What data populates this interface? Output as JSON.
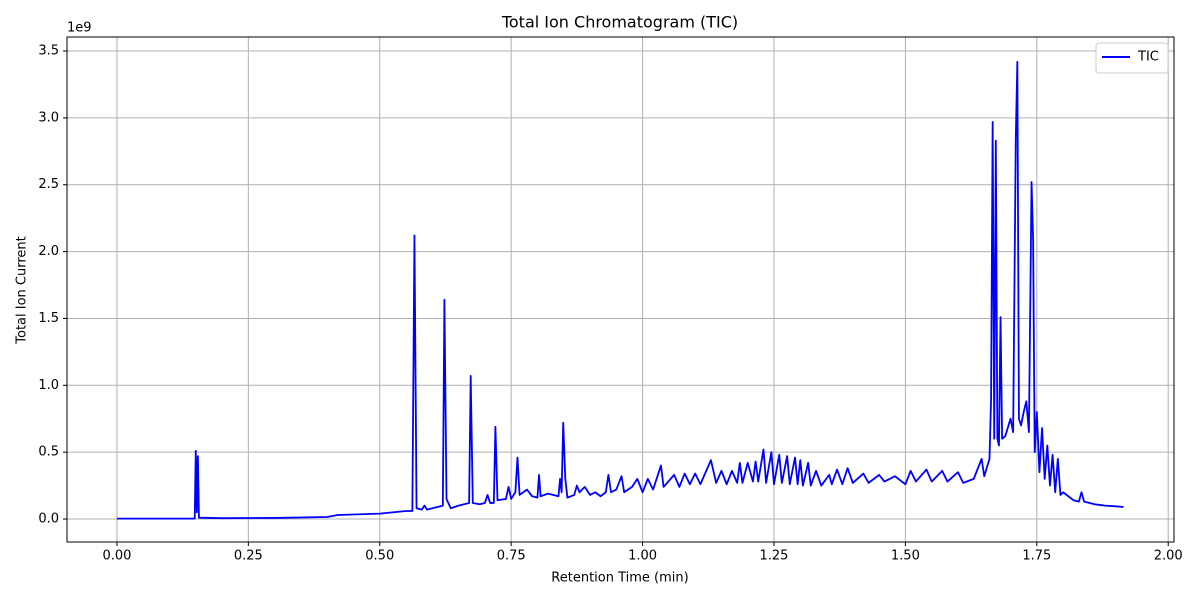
{
  "chart_data": {
    "type": "line",
    "title": "Total Ion Chromatogram (TIC)",
    "x_label": "Retention Time (min)",
    "y_label": "Total Ion Current",
    "y_offset_label": "1e9",
    "xlim": [
      -0.095,
      2.011
    ],
    "ylim": [
      -0.172,
      3.605
    ],
    "xticks": [
      {
        "value": 0,
        "label": "0.00"
      },
      0.25,
      {
        "value": 0.5,
        "label": "0.50"
      },
      0.75,
      {
        "value": 1,
        "label": "1.00"
      },
      1.25,
      {
        "value": 1.5,
        "label": "1.50"
      },
      1.75,
      {
        "value": 2,
        "label": "2.00"
      }
    ],
    "yticks": [
      {
        "value": 0,
        "label": "0.0"
      },
      0.5,
      {
        "value": 1,
        "label": "1.0"
      },
      1.5,
      {
        "value": 2,
        "label": "2.0"
      },
      2.5,
      {
        "value": 3,
        "label": "3.0"
      },
      3.5
    ],
    "grid": true,
    "legend": "upper right",
    "x": [
      0.0,
      0.1,
      0.148,
      0.15,
      0.152,
      0.154,
      0.156,
      0.2,
      0.3,
      0.4,
      0.42,
      0.5,
      0.55,
      0.562,
      0.566,
      0.57,
      0.58,
      0.585,
      0.59,
      0.61,
      0.62,
      0.623,
      0.627,
      0.635,
      0.65,
      0.67,
      0.673,
      0.677,
      0.69,
      0.7,
      0.705,
      0.71,
      0.717,
      0.72,
      0.724,
      0.74,
      0.745,
      0.75,
      0.758,
      0.762,
      0.766,
      0.78,
      0.79,
      0.8,
      0.803,
      0.806,
      0.82,
      0.84,
      0.843,
      0.846,
      0.849,
      0.853,
      0.857,
      0.87,
      0.875,
      0.88,
      0.89,
      0.9,
      0.91,
      0.92,
      0.93,
      0.935,
      0.94,
      0.95,
      0.96,
      0.965,
      0.98,
      0.99,
      1.0,
      1.01,
      1.02,
      1.035,
      1.04,
      1.06,
      1.07,
      1.08,
      1.09,
      1.1,
      1.11,
      1.13,
      1.14,
      1.15,
      1.16,
      1.17,
      1.18,
      1.185,
      1.19,
      1.2,
      1.21,
      1.215,
      1.22,
      1.23,
      1.235,
      1.245,
      1.25,
      1.26,
      1.265,
      1.275,
      1.28,
      1.29,
      1.295,
      1.3,
      1.305,
      1.315,
      1.32,
      1.33,
      1.34,
      1.355,
      1.36,
      1.37,
      1.38,
      1.39,
      1.4,
      1.42,
      1.43,
      1.45,
      1.46,
      1.48,
      1.5,
      1.51,
      1.52,
      1.54,
      1.55,
      1.57,
      1.58,
      1.6,
      1.61,
      1.63,
      1.645,
      1.65,
      1.66,
      1.663,
      1.666,
      1.669,
      1.672,
      1.675,
      1.678,
      1.681,
      1.684,
      1.69,
      1.7,
      1.705,
      1.71,
      1.713,
      1.716,
      1.72,
      1.725,
      1.73,
      1.735,
      1.74,
      1.743,
      1.746,
      1.75,
      1.755,
      1.76,
      1.765,
      1.77,
      1.775,
      1.78,
      1.785,
      1.79,
      1.795,
      1.8,
      1.82,
      1.83,
      1.835,
      1.84,
      1.86,
      1.88,
      1.9,
      1.915
    ],
    "series": [
      {
        "name": "TIC",
        "color": "#0000ff",
        "values": [
          0.003,
          0.003,
          0.003,
          0.51,
          0.05,
          0.47,
          0.01,
          0.006,
          0.008,
          0.015,
          0.03,
          0.04,
          0.06,
          0.06,
          2.12,
          0.08,
          0.07,
          0.1,
          0.07,
          0.09,
          0.1,
          1.64,
          0.15,
          0.08,
          0.1,
          0.12,
          1.07,
          0.12,
          0.11,
          0.12,
          0.18,
          0.12,
          0.12,
          0.69,
          0.14,
          0.15,
          0.24,
          0.15,
          0.2,
          0.46,
          0.18,
          0.22,
          0.17,
          0.16,
          0.33,
          0.17,
          0.19,
          0.17,
          0.3,
          0.2,
          0.72,
          0.3,
          0.16,
          0.18,
          0.25,
          0.2,
          0.24,
          0.18,
          0.2,
          0.17,
          0.2,
          0.33,
          0.2,
          0.22,
          0.32,
          0.2,
          0.24,
          0.3,
          0.2,
          0.3,
          0.22,
          0.4,
          0.24,
          0.33,
          0.24,
          0.34,
          0.26,
          0.34,
          0.26,
          0.44,
          0.27,
          0.36,
          0.26,
          0.36,
          0.27,
          0.42,
          0.27,
          0.42,
          0.28,
          0.43,
          0.28,
          0.52,
          0.27,
          0.5,
          0.26,
          0.48,
          0.27,
          0.47,
          0.26,
          0.46,
          0.26,
          0.44,
          0.25,
          0.42,
          0.25,
          0.36,
          0.25,
          0.33,
          0.26,
          0.37,
          0.26,
          0.38,
          0.27,
          0.34,
          0.27,
          0.33,
          0.28,
          0.32,
          0.26,
          0.36,
          0.28,
          0.37,
          0.28,
          0.36,
          0.28,
          0.35,
          0.27,
          0.3,
          0.45,
          0.32,
          0.45,
          0.9,
          2.97,
          0.6,
          2.83,
          0.6,
          0.55,
          1.51,
          0.6,
          0.62,
          0.75,
          0.65,
          2.85,
          3.42,
          0.75,
          0.7,
          0.8,
          0.88,
          0.65,
          2.52,
          2.08,
          0.5,
          0.8,
          0.35,
          0.68,
          0.3,
          0.55,
          0.25,
          0.48,
          0.2,
          0.45,
          0.18,
          0.2,
          0.14,
          0.13,
          0.2,
          0.13,
          0.11,
          0.1,
          0.095,
          0.09
        ]
      }
    ]
  }
}
